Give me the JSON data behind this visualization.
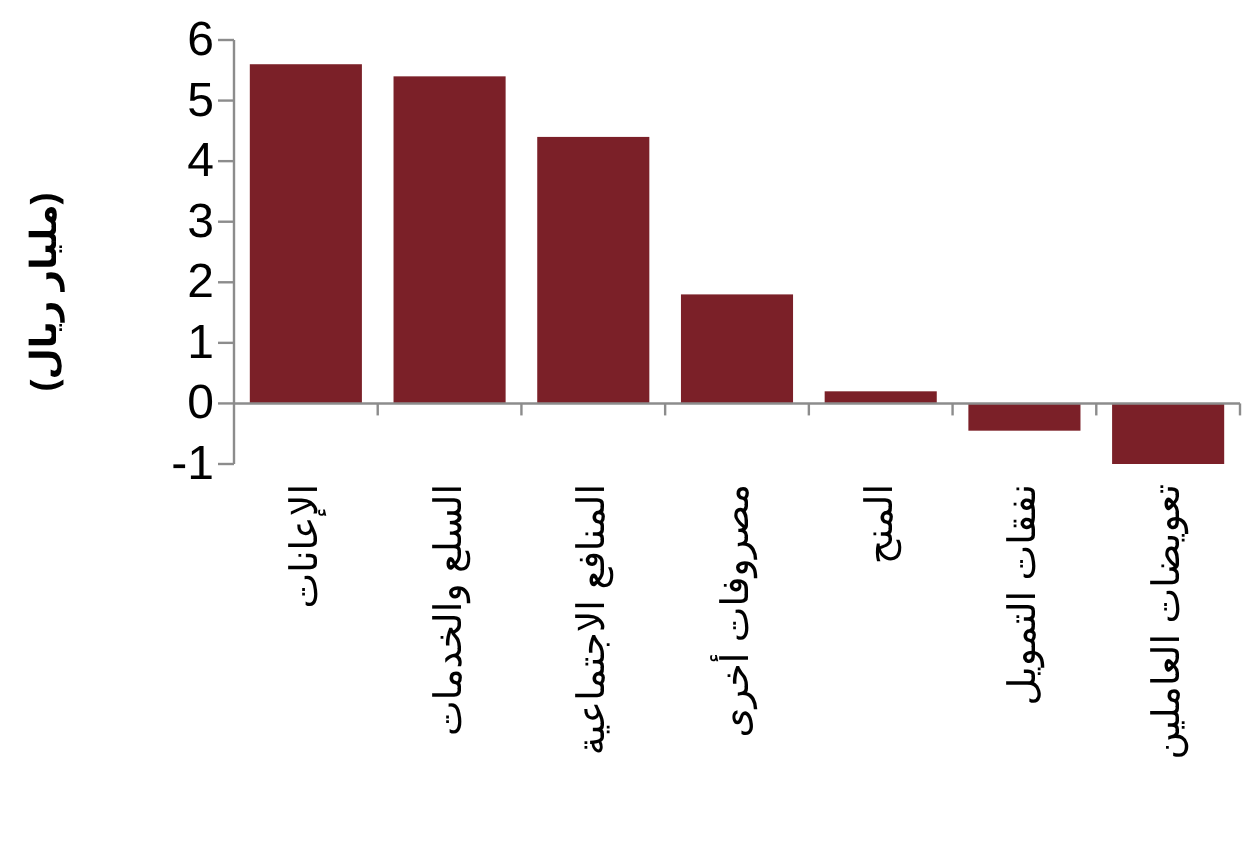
{
  "chart_data": {
    "type": "bar",
    "ylabel": "(مليار ريال)",
    "categories": [
      "الإعانات",
      "السلع والخدمات",
      "المنافع الاجتماعية",
      "مصروفات أخرى",
      "المنح",
      "نفقات التمويل",
      "تعويضات العاملين"
    ],
    "values": [
      5.6,
      5.4,
      4.4,
      1.8,
      0.2,
      -0.45,
      -1.0
    ],
    "color": "#7b2028",
    "ylim": [
      -1,
      6
    ],
    "yticks": [
      -1,
      0,
      1,
      2,
      3,
      4,
      5,
      6
    ]
  }
}
